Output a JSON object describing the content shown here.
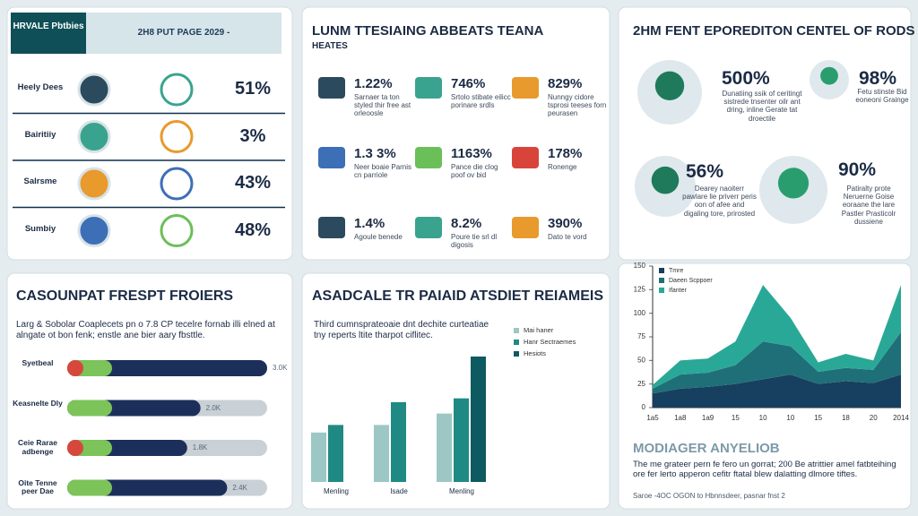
{
  "kpi_panel": {
    "badge": "HRVALE Pbtbies",
    "header": "2H8 PUT PAGE 2029 -",
    "rows": [
      {
        "label": "Heely Dees",
        "value": "51%"
      },
      {
        "label": "Bairitiiy",
        "value": "3%"
      },
      {
        "label": "Salrsme",
        "value": "43%"
      },
      {
        "label": "Sumbiy",
        "value": "48%"
      }
    ]
  },
  "stats_panel": {
    "title": "LUNM TTESIAING ABBEATS TEANA",
    "subtitle": "HEATES",
    "items": [
      {
        "value": "1.22%",
        "text": "Sarnaer ta ton styled thir free ast orleoosle"
      },
      {
        "value": "746%",
        "text": "Srtolo stibate eilicc porinare srdls"
      },
      {
        "value": "829%",
        "text": "Nunngy cidore tsprosi teeses forn peurasen"
      },
      {
        "value": "1.3 3%",
        "text": "Neer boaie Parnis cn parriole"
      },
      {
        "value": "1163%",
        "text": "Pance die clog poof ov bid"
      },
      {
        "value": "178%",
        "text": "Ronenge"
      },
      {
        "value": "1.4%",
        "text": "Agoule benede"
      },
      {
        "value": "8.2%",
        "text": "Poure tie srl dl digosis"
      },
      {
        "value": "390%",
        "text": "Dato te vord"
      }
    ]
  },
  "center_panel": {
    "title": "2HM FENT EPOREDITON CENTEL OF RODS",
    "items": [
      {
        "value": "500%",
        "text": "Dunatiing ssik of ceritingt sistrede tnsenter oilr ant dring, inline Gerate tat droectile"
      },
      {
        "value": "98%",
        "text": "Fetu stinste Bid eoneoni Grainge"
      },
      {
        "value": "56%",
        "text": "Dearey naoiterr pawlare lie priverr peris oon of afee and digaling tore, prirosted"
      },
      {
        "value": "90%",
        "text": "Patiralty prote Neruerne Goise eoraane the lare Pastler Prasticolr dussiene"
      }
    ]
  },
  "progress_panel": {
    "title": "CASOUNPAT FRESPT FROIERS",
    "description": "Larg & Sobolar Coaplecets pn o 7.8 CP tecelre fornab illi elned at alngate ot bon fenk; enstle ane bier aary fbsttle.",
    "bars": [
      {
        "label": "Syetbeal",
        "value": 3000,
        "value_label": "3.0K"
      },
      {
        "label": "Keasnelte Dly",
        "value": 2000,
        "value_label": "2.0K"
      },
      {
        "label": "Ceie Rarae adbenge",
        "value": 1800,
        "value_label": "1.8K"
      },
      {
        "label": "Oite Tenne peer Dae",
        "value": 2400,
        "value_label": "2.4K"
      }
    ]
  },
  "bar_panel": {
    "title": "ASADCALE TR PAIAID ATSDIET REIAMEIS",
    "description": "Third cumnsprateoaie dnt dechite curteatiae tny reperts ltite tharpot ciflitec.",
    "chart": {
      "type": "bar",
      "categories": [
        "Menling",
        "Isade",
        "Menling"
      ],
      "series": [
        {
          "name": "Mai haner",
          "color": "#9cc7c4",
          "values": [
            65,
            75,
            90
          ]
        },
        {
          "name": "Hanr Sectraemes",
          "color": "#1f8a84",
          "values": [
            75,
            105,
            110
          ]
        },
        {
          "name": "Hesiots",
          "color": "#0e5a61",
          "values": [
            null,
            null,
            165
          ]
        }
      ]
    }
  },
  "area_panel": {
    "chart": {
      "type": "area",
      "categories": [
        "1a5",
        "1a8",
        "1a9",
        "15",
        "10",
        "10",
        "15",
        "18",
        "20",
        "2014"
      ],
      "ylim": [
        0,
        150
      ],
      "yticks": [
        0,
        25,
        50,
        75,
        100,
        125,
        150
      ],
      "series": [
        {
          "name": "Tmre",
          "color": "#173f5f",
          "values": [
            15,
            20,
            22,
            25,
            30,
            35,
            25,
            28,
            26,
            35
          ]
        },
        {
          "name": "Daeen Scppoer",
          "color": "#1f6f78",
          "values": [
            5,
            15,
            15,
            20,
            40,
            30,
            13,
            14,
            14,
            45
          ]
        },
        {
          "name": "Ifanter",
          "color": "#2aa897",
          "values": [
            4,
            15,
            15,
            25,
            60,
            30,
            10,
            15,
            10,
            50
          ]
        }
      ]
    },
    "title": "MODIAGER ANYELIOB",
    "description": "The me grateer pern fe fero un gorrat; 200 Be atrittier amel fatbteihing ore fer lerto apperon cefitr ftatal blew dalatting dlmore tiftes.",
    "source": "Saroe -4OC OGON to Hbnnsdeer, pasnar fnst 2"
  }
}
